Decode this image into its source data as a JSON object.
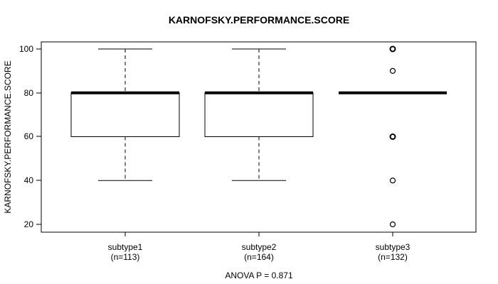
{
  "chart_data": {
    "type": "boxplot",
    "title": "KARNOFSKY.PERFORMANCE.SCORE",
    "ylabel": "KARNOFSKY.PERFORMANCE.SCORE",
    "ylim": [
      16,
      104
    ],
    "yticks": [
      100,
      80,
      60,
      40,
      20
    ],
    "ytick_labels": [
      "100",
      "80",
      "60",
      "40",
      "20"
    ],
    "grid": false,
    "annotation": "ANOVA P = 0.871",
    "colors": {
      "line": "#000000",
      "box_fill": "#ffffff",
      "background": "#ffffff"
    },
    "groups": [
      {
        "label": "subtype1",
        "n_label": "(n=113)",
        "n": 113,
        "median": 80,
        "q1": 60,
        "q3": 80,
        "whisker_low": 40,
        "whisker_high": 100,
        "outliers": []
      },
      {
        "label": "subtype2",
        "n_label": "(n=164)",
        "n": 164,
        "median": 80,
        "q1": 60,
        "q3": 80,
        "whisker_low": 40,
        "whisker_high": 100,
        "outliers": []
      },
      {
        "label": "subtype3",
        "n_label": "(n=132)",
        "n": 132,
        "median": 80,
        "q1": 80,
        "q3": 80,
        "whisker_low": 80,
        "whisker_high": 80,
        "outliers": [
          {
            "value": 100,
            "bold": true
          },
          {
            "value": 90,
            "bold": false
          },
          {
            "value": 60,
            "bold": true
          },
          {
            "value": 40,
            "bold": false
          },
          {
            "value": 20,
            "bold": false
          }
        ]
      }
    ]
  }
}
